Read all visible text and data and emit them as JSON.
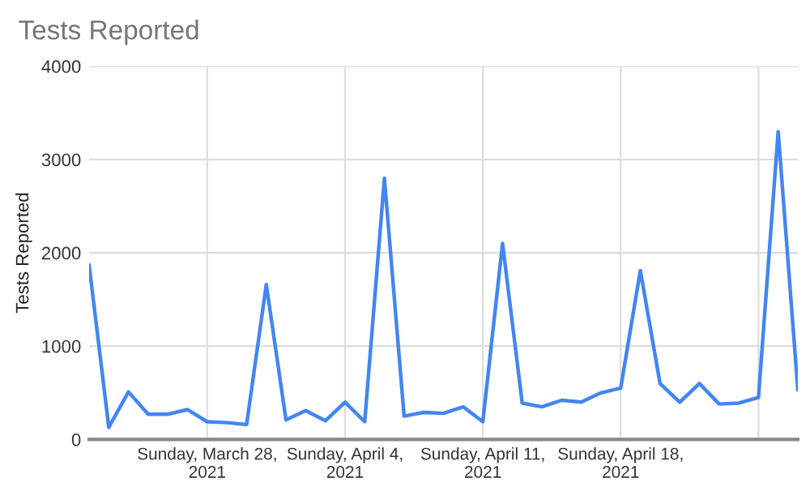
{
  "chart_data": {
    "type": "line",
    "title": "Tests Reported",
    "ylabel": "Tests Reported",
    "x": [
      "2021-03-22",
      "2021-03-23",
      "2021-03-24",
      "2021-03-25",
      "2021-03-26",
      "2021-03-27",
      "2021-03-28",
      "2021-03-29",
      "2021-03-30",
      "2021-03-31",
      "2021-04-01",
      "2021-04-02",
      "2021-04-03",
      "2021-04-04",
      "2021-04-05",
      "2021-04-06",
      "2021-04-07",
      "2021-04-08",
      "2021-04-09",
      "2021-04-10",
      "2021-04-11",
      "2021-04-12",
      "2021-04-13",
      "2021-04-14",
      "2021-04-15",
      "2021-04-16",
      "2021-04-17",
      "2021-04-18",
      "2021-04-19",
      "2021-04-20",
      "2021-04-21",
      "2021-04-22",
      "2021-04-23",
      "2021-04-24",
      "2021-04-25",
      "2021-04-26",
      "2021-04-27"
    ],
    "series": [
      {
        "color": "#4285f4",
        "values": [
          1870,
          130,
          510,
          270,
          270,
          320,
          190,
          180,
          160,
          1660,
          210,
          310,
          200,
          400,
          190,
          2800,
          250,
          290,
          280,
          350,
          190,
          2100,
          390,
          350,
          420,
          400,
          500,
          550,
          1810,
          600,
          400,
          600,
          380,
          390,
          450,
          3300,
          530
        ]
      }
    ],
    "xlim": [
      "2021-03-22",
      "2021-04-27"
    ],
    "xticks": [
      {
        "value": "2021-03-28",
        "label": "Sunday, March 28,\n2021"
      },
      {
        "value": "2021-04-04",
        "label": "Sunday, April 4,\n2021"
      },
      {
        "value": "2021-04-11",
        "label": "Sunday, April 11,\n2021"
      },
      {
        "value": "2021-04-18",
        "label": "Sunday, April 18,\n2021"
      },
      {
        "value": "2021-04-25",
        "label": null
      }
    ],
    "ylim": [
      0,
      4000
    ],
    "yticks": [
      0,
      1000,
      2000,
      3000,
      4000
    ],
    "grid": true,
    "marker": "none",
    "line_style": "solid"
  }
}
